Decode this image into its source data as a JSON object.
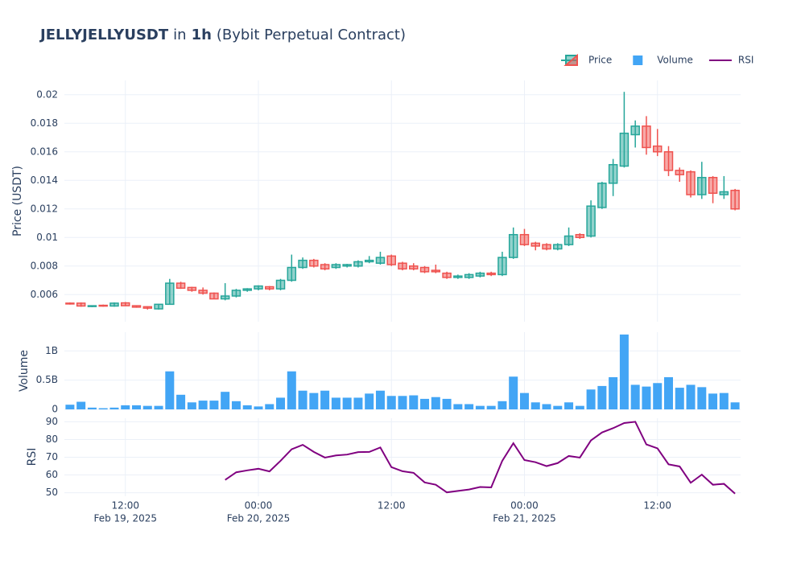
{
  "chart_data": {
    "type": "candlestick",
    "title": [
      "JELLYJELLYUSDT",
      "in",
      "1h",
      "(Bybit Perpetual Contract)"
    ],
    "y_label": "Price (USDT)",
    "y2_label": "Volume",
    "y3_label": "RSI",
    "grid": true,
    "legend_position": "top-right",
    "xlim": [
      "2025-02-19 06:30",
      "2025-02-21 19:30"
    ],
    "xticks": [
      {
        "value": "2025-02-19 12:00",
        "label": "12:00",
        "date": "Feb 19, 2025"
      },
      {
        "value": "2025-02-20 00:00",
        "label": "00:00",
        "date": "Feb 20, 2025"
      },
      {
        "value": "2025-02-20 12:00",
        "label": "12:00"
      },
      {
        "value": "2025-02-21 00:00",
        "label": "00:00",
        "date": "Feb 21, 2025"
      },
      {
        "value": "2025-02-21 12:00",
        "label": "12:00"
      }
    ],
    "ylim": [
      0.0041,
      0.021
    ],
    "yticks": [
      0.006,
      0.008,
      0.01,
      0.012,
      0.014,
      0.016,
      0.018,
      0.02
    ],
    "y2lim": [
      0,
      1320000000
    ],
    "y2ticks": [
      0,
      {
        "value": 500000000,
        "label": "0.5B"
      },
      {
        "value": 1000000000,
        "label": "1B"
      }
    ],
    "y3lim": [
      48,
      92
    ],
    "y3ticks": [
      50,
      60,
      70,
      80,
      90
    ],
    "x": [
      "2025-02-19 07:00",
      "2025-02-19 08:00",
      "2025-02-19 09:00",
      "2025-02-19 10:00",
      "2025-02-19 11:00",
      "2025-02-19 12:00",
      "2025-02-19 13:00",
      "2025-02-19 14:00",
      "2025-02-19 15:00",
      "2025-02-19 16:00",
      "2025-02-19 17:00",
      "2025-02-19 18:00",
      "2025-02-19 19:00",
      "2025-02-19 20:00",
      "2025-02-19 21:00",
      "2025-02-19 22:00",
      "2025-02-19 23:00",
      "2025-02-20 00:00",
      "2025-02-20 01:00",
      "2025-02-20 02:00",
      "2025-02-20 03:00",
      "2025-02-20 04:00",
      "2025-02-20 05:00",
      "2025-02-20 06:00",
      "2025-02-20 07:00",
      "2025-02-20 08:00",
      "2025-02-20 09:00",
      "2025-02-20 10:00",
      "2025-02-20 11:00",
      "2025-02-20 12:00",
      "2025-02-20 13:00",
      "2025-02-20 14:00",
      "2025-02-20 15:00",
      "2025-02-20 16:00",
      "2025-02-20 17:00",
      "2025-02-20 18:00",
      "2025-02-20 19:00",
      "2025-02-20 20:00",
      "2025-02-20 21:00",
      "2025-02-20 22:00",
      "2025-02-20 23:00",
      "2025-02-21 00:00",
      "2025-02-21 01:00",
      "2025-02-21 02:00",
      "2025-02-21 03:00",
      "2025-02-21 04:00",
      "2025-02-21 05:00",
      "2025-02-21 06:00",
      "2025-02-21 07:00",
      "2025-02-21 08:00",
      "2025-02-21 09:00",
      "2025-02-21 10:00",
      "2025-02-21 11:00",
      "2025-02-21 12:00",
      "2025-02-21 13:00",
      "2025-02-21 14:00",
      "2025-02-21 15:00",
      "2025-02-21 16:00",
      "2025-02-21 17:00",
      "2025-02-21 18:00",
      "2025-02-21 19:00"
    ],
    "series": [
      {
        "name": "Price",
        "type": "candlestick",
        "increasing_color": "#26a69a",
        "decreasing_color": "#ef5350",
        "open": [
          0.0054,
          0.0054,
          0.00518,
          0.00525,
          0.0052,
          0.00542,
          0.00522,
          0.00515,
          0.005,
          0.00532,
          0.0068,
          0.0065,
          0.0063,
          0.0061,
          0.0057,
          0.0059,
          0.0063,
          0.0064,
          0.00655,
          0.0064,
          0.007,
          0.0079,
          0.0084,
          0.0081,
          0.0079,
          0.008,
          0.008,
          0.0083,
          0.0082,
          0.0087,
          0.0082,
          0.008,
          0.0079,
          0.0077,
          0.0075,
          0.0072,
          0.0072,
          0.0073,
          0.0075,
          0.0074,
          0.0086,
          0.0102,
          0.0096,
          0.0095,
          0.0092,
          0.0095,
          0.0102,
          0.0101,
          0.0121,
          0.0138,
          0.015,
          0.0172,
          0.0178,
          0.0164,
          0.016,
          0.0147,
          0.0146,
          0.013,
          0.0142,
          0.013,
          0.0133
        ],
        "high": [
          0.00545,
          0.00545,
          0.00525,
          0.0053,
          0.00545,
          0.00548,
          0.00525,
          0.00518,
          0.00535,
          0.0071,
          0.0069,
          0.00655,
          0.0065,
          0.00615,
          0.0068,
          0.0064,
          0.00645,
          0.00665,
          0.0066,
          0.0071,
          0.0088,
          0.0086,
          0.0085,
          0.0082,
          0.0082,
          0.00815,
          0.0084,
          0.0087,
          0.009,
          0.0088,
          0.0083,
          0.0082,
          0.008,
          0.0081,
          0.0076,
          0.0074,
          0.0075,
          0.0076,
          0.0076,
          0.009,
          0.0107,
          0.0106,
          0.0097,
          0.0096,
          0.0096,
          0.0107,
          0.0103,
          0.0126,
          0.0139,
          0.0155,
          0.0202,
          0.0182,
          0.0185,
          0.0176,
          0.0164,
          0.0149,
          0.0147,
          0.0153,
          0.0143,
          0.0143,
          0.0134
        ],
        "low": [
          0.0053,
          0.00515,
          0.00512,
          0.00515,
          0.00515,
          0.0052,
          0.00508,
          0.00495,
          0.00495,
          0.0053,
          0.0064,
          0.0062,
          0.006,
          0.0057,
          0.0056,
          0.0058,
          0.0062,
          0.0063,
          0.0063,
          0.0063,
          0.0069,
          0.0078,
          0.0079,
          0.0077,
          0.0078,
          0.0079,
          0.0079,
          0.0082,
          0.0081,
          0.008,
          0.0077,
          0.0077,
          0.0075,
          0.0075,
          0.0071,
          0.0071,
          0.0071,
          0.0072,
          0.0073,
          0.0073,
          0.0085,
          0.0094,
          0.0091,
          0.0091,
          0.0091,
          0.0094,
          0.0099,
          0.01,
          0.012,
          0.0129,
          0.0149,
          0.0163,
          0.0158,
          0.0157,
          0.0143,
          0.0139,
          0.0128,
          0.0127,
          0.0124,
          0.0127,
          0.0119
        ],
        "close": [
          0.00535,
          0.0052,
          0.00522,
          0.0052,
          0.0054,
          0.00522,
          0.00512,
          0.00505,
          0.00532,
          0.0068,
          0.00645,
          0.0063,
          0.0061,
          0.0057,
          0.0059,
          0.0063,
          0.0064,
          0.0066,
          0.0064,
          0.007,
          0.0079,
          0.0084,
          0.008,
          0.0078,
          0.0081,
          0.0081,
          0.0083,
          0.0084,
          0.0086,
          0.0081,
          0.0078,
          0.0078,
          0.0076,
          0.0076,
          0.0072,
          0.0073,
          0.0074,
          0.0075,
          0.0074,
          0.0086,
          0.0102,
          0.0095,
          0.0094,
          0.0092,
          0.0095,
          0.0101,
          0.01,
          0.0122,
          0.0138,
          0.0151,
          0.0173,
          0.0178,
          0.0163,
          0.016,
          0.0147,
          0.0144,
          0.013,
          0.0142,
          0.0131,
          0.0132,
          0.012
        ]
      },
      {
        "name": "Volume",
        "type": "bar",
        "axis": "y2",
        "color": "#42a5f5",
        "values": [
          80000000.0,
          130000000.0,
          30000000.0,
          20000000.0,
          30000000.0,
          70000000.0,
          70000000.0,
          60000000.0,
          60000000.0,
          650000000.0,
          250000000.0,
          120000000.0,
          150000000.0,
          150000000.0,
          300000000.0,
          140000000.0,
          70000000.0,
          50000000.0,
          90000000.0,
          200000000.0,
          650000000.0,
          320000000.0,
          280000000.0,
          320000000.0,
          200000000.0,
          200000000.0,
          200000000.0,
          270000000.0,
          320000000.0,
          230000000.0,
          230000000.0,
          240000000.0,
          180000000.0,
          210000000.0,
          180000000.0,
          90000000.0,
          90000000.0,
          60000000.0,
          60000000.0,
          140000000.0,
          560000000.0,
          280000000.0,
          120000000.0,
          90000000.0,
          60000000.0,
          120000000.0,
          60000000.0,
          340000000.0,
          400000000.0,
          550000000.0,
          1280000000.0,
          420000000.0,
          390000000.0,
          450000000.0,
          550000000.0,
          370000000.0,
          420000000.0,
          380000000.0,
          270000000.0,
          280000000.0,
          120000000.0
        ]
      },
      {
        "name": "RSI",
        "type": "line",
        "axis": "y3",
        "color": "#800080",
        "values": [
          null,
          null,
          null,
          null,
          null,
          null,
          null,
          null,
          null,
          null,
          null,
          null,
          null,
          null,
          57.2,
          61.5,
          62.6,
          63.5,
          62,
          68,
          74.5,
          77,
          73,
          69.8,
          71,
          71.5,
          72.9,
          73,
          75.5,
          64.4,
          62.1,
          61.2,
          55.8,
          54.5,
          50.2,
          51,
          51.8,
          53.2,
          53,
          68,
          77.9,
          68.4,
          67.2,
          65,
          66.7,
          70.7,
          69.8,
          79.5,
          84,
          86.4,
          89.3,
          90,
          77.2,
          75,
          66,
          64.8,
          55.6,
          60.2,
          54.5,
          55,
          49.5
        ]
      }
    ]
  }
}
